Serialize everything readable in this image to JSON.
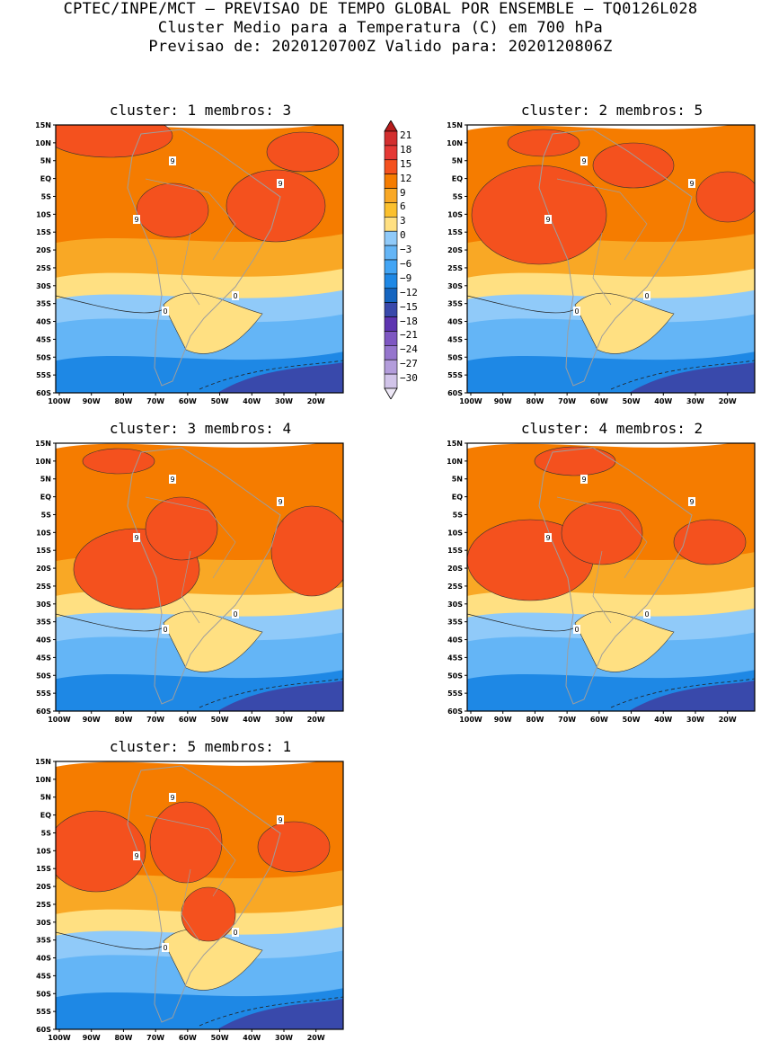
{
  "header": {
    "line1": "CPTEC/INPE/MCT – PREVISAO DE TEMPO GLOBAL POR ENSEMBLE – TQ0126L028",
    "line2": "Cluster Medio para a Temperatura (C) em 700 hPa",
    "line3": "Previsao de: 2020120700Z   Valido para: 2020120806Z"
  },
  "panels": [
    {
      "title": "cluster: 1   membros: 3"
    },
    {
      "title": "cluster: 2   membros: 5"
    },
    {
      "title": "cluster: 3   membros: 4"
    },
    {
      "title": "cluster: 4   membros: 2"
    },
    {
      "title": "cluster: 5   membros: 1"
    }
  ],
  "axes": {
    "lat_labels": [
      "15N",
      "10N",
      "5N",
      "EQ",
      "5S",
      "10S",
      "15S",
      "20S",
      "25S",
      "30S",
      "35S",
      "40S",
      "45S",
      "50S",
      "55S",
      "60S"
    ],
    "lon_labels": [
      "100W",
      "90W",
      "80W",
      "70W",
      "60W",
      "50W",
      "40W",
      "30W",
      "20W"
    ]
  },
  "colorbar": {
    "labels": [
      "21",
      "18",
      "15",
      "12",
      "9",
      "6",
      "3",
      "0",
      "−3",
      "−6",
      "−9",
      "−12",
      "−15",
      "−18",
      "−21",
      "−24",
      "−27",
      "−30"
    ],
    "colors": [
      "#b71c1c",
      "#d32f2f",
      "#e53935",
      "#f4511e",
      "#f57c00",
      "#f9a825",
      "#fbc02d",
      "#ffe082",
      "#90caf9",
      "#64b5f6",
      "#42a5f5",
      "#1e88e5",
      "#1565c0",
      "#3949ab",
      "#5e35b1",
      "#7e57c2",
      "#9575cd",
      "#b39ddb",
      "#d1c4e9",
      "#ede7f6"
    ]
  },
  "contour_labels": {
    "warm": "9",
    "zero": "0"
  }
}
